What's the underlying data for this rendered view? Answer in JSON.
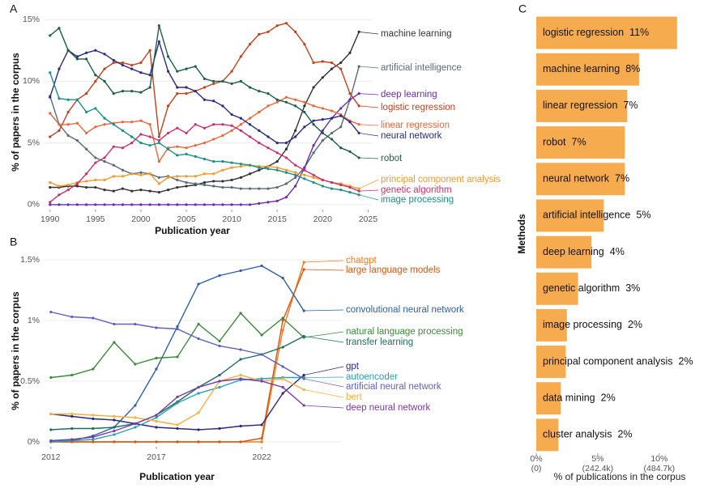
{
  "chart_data": [
    {
      "type": "line",
      "panel": "A",
      "xlabel": "Publication year",
      "ylabel": "% of papers in the corpus",
      "x": [
        1990,
        1991,
        1992,
        1993,
        1994,
        1995,
        1996,
        1997,
        1998,
        1999,
        2000,
        2001,
        2002,
        2003,
        2004,
        2005,
        2006,
        2007,
        2008,
        2009,
        2010,
        2011,
        2012,
        2013,
        2014,
        2015,
        2016,
        2017,
        2018,
        2019,
        2020,
        2021,
        2022,
        2023,
        2024
      ],
      "xlim": [
        1989.4,
        2025.5
      ],
      "xticks": [
        1990,
        1995,
        2000,
        2005,
        2010,
        2015,
        2020,
        2025
      ],
      "ylim": [
        -0.4,
        15.4
      ],
      "yticks": [
        {
          "value": 0,
          "label": "0%"
        },
        {
          "value": 5,
          "label": "5%"
        },
        {
          "value": 10,
          "label": "10%"
        },
        {
          "value": 15,
          "label": "15%"
        }
      ],
      "grid": true,
      "series": [
        {
          "name": "machine learning",
          "color": "#333333",
          "values": [
            1.4,
            1.4,
            1.5,
            1.5,
            1.4,
            1.4,
            1.2,
            1.1,
            1.3,
            1.1,
            1.2,
            1.1,
            1.0,
            1.2,
            1.4,
            1.5,
            1.6,
            1.8,
            1.9,
            1.9,
            2.0,
            2.2,
            2.5,
            2.8,
            3.1,
            3.5,
            4.5,
            6.0,
            8.0,
            9.5,
            10.3,
            11.0,
            11.5,
            12.3,
            14.0
          ]
        },
        {
          "name": "artificial intelligence",
          "color": "#5a6b74",
          "values": [
            8.8,
            6.5,
            5.6,
            5.2,
            4.5,
            3.8,
            3.5,
            3.2,
            2.8,
            2.5,
            2.6,
            2.5,
            2.2,
            2.3,
            2.0,
            1.8,
            1.7,
            1.6,
            1.5,
            1.4,
            1.4,
            1.3,
            1.3,
            1.3,
            1.3,
            1.4,
            1.7,
            2.2,
            3.0,
            4.2,
            5.2,
            5.8,
            6.3,
            8.5,
            11.2
          ]
        },
        {
          "name": "deep learning",
          "color": "#6a2fa8",
          "values": [
            0,
            0,
            0,
            0,
            0,
            0,
            0,
            0,
            0,
            0,
            0,
            0,
            0,
            0,
            0,
            0,
            0,
            0,
            0,
            0,
            0,
            0,
            0,
            0.1,
            0.2,
            0.3,
            0.6,
            1.5,
            3.0,
            4.8,
            6.0,
            7.0,
            7.8,
            8.5,
            9.0
          ]
        },
        {
          "name": "logistic regression",
          "color": "#c0431f",
          "values": [
            5.5,
            6.0,
            7.5,
            8.5,
            9.0,
            10.0,
            11.0,
            11.5,
            11.5,
            11.3,
            11.5,
            12.5,
            5.5,
            8.0,
            9.0,
            9.0,
            9.2,
            9.5,
            9.8,
            10.0,
            10.8,
            12.0,
            13.0,
            13.8,
            14.0,
            14.5,
            14.7,
            14.0,
            13.0,
            11.5,
            11.6,
            11.5,
            11.0,
            9.0,
            8.0
          ]
        },
        {
          "name": "linear regression",
          "color": "#e8683c",
          "values": [
            7.4,
            6.5,
            6.5,
            6.6,
            5.8,
            6.3,
            6.5,
            6.6,
            6.7,
            6.7,
            6.8,
            6.5,
            3.5,
            4.6,
            4.7,
            4.6,
            4.8,
            5.0,
            5.3,
            5.6,
            6.0,
            6.5,
            7.0,
            7.5,
            8.0,
            8.3,
            8.7,
            8.5,
            8.3,
            8.0,
            7.8,
            7.6,
            7.3,
            6.8,
            6.5
          ]
        },
        {
          "name": "neural network",
          "color": "#2c2a86",
          "values": [
            8.7,
            11.0,
            12.5,
            12.0,
            12.3,
            12.5,
            12.2,
            11.7,
            11.3,
            11.0,
            10.7,
            10.5,
            13.2,
            10.8,
            9.5,
            9.5,
            9.2,
            8.5,
            8.4,
            8.0,
            7.3,
            7.0,
            6.5,
            6.0,
            5.5,
            5.0,
            5.0,
            5.5,
            6.3,
            6.8,
            6.9,
            7.0,
            7.2,
            6.7,
            5.8
          ]
        },
        {
          "name": "robot",
          "color": "#1e5e46",
          "values": [
            13.7,
            14.3,
            12.5,
            11.8,
            11.8,
            10.5,
            10.0,
            9.0,
            9.2,
            9.2,
            9.1,
            9.5,
            14.5,
            12.0,
            10.8,
            11.0,
            11.2,
            10.2,
            10.0,
            10.0,
            9.8,
            10.0,
            9.5,
            9.2,
            9.0,
            8.5,
            8.3,
            8.0,
            7.5,
            6.5,
            5.8,
            5.3,
            4.6,
            4.3,
            3.8
          ]
        },
        {
          "name": "principal component analysis",
          "color": "#f39a2a",
          "values": [
            1.8,
            1.5,
            1.6,
            1.8,
            1.9,
            2.0,
            2.0,
            2.3,
            2.3,
            2.5,
            2.4,
            2.5,
            1.7,
            2.2,
            2.3,
            2.3,
            2.3,
            2.5,
            2.5,
            2.8,
            3.0,
            3.1,
            3.2,
            3.1,
            3.1,
            3.0,
            2.8,
            2.6,
            2.4,
            2.2,
            2.0,
            1.8,
            1.7,
            1.5,
            1.3
          ]
        },
        {
          "name": "genetic algorithm",
          "color": "#c8306e",
          "values": [
            0.2,
            0.8,
            1.2,
            1.7,
            2.5,
            3.4,
            3.8,
            4.7,
            4.6,
            5.0,
            5.7,
            5.5,
            5.2,
            5.8,
            6.2,
            5.8,
            6.5,
            6.2,
            6.5,
            6.5,
            6.4,
            6.0,
            5.5,
            5.0,
            4.6,
            4.2,
            3.8,
            3.2,
            2.8,
            2.4,
            2.0,
            1.8,
            1.6,
            1.4,
            1.1
          ]
        },
        {
          "name": "image processing",
          "color": "#1c8f86",
          "values": [
            10.7,
            8.6,
            8.5,
            8.5,
            7.5,
            7.8,
            7.0,
            6.5,
            6.0,
            5.5,
            5.0,
            4.8,
            5.0,
            4.5,
            4.0,
            4.1,
            3.9,
            3.7,
            3.5,
            3.5,
            3.4,
            3.3,
            3.2,
            3.0,
            2.9,
            2.8,
            2.6,
            2.4,
            2.1,
            1.8,
            1.5,
            1.3,
            1.2,
            1.0,
            0.8
          ]
        }
      ]
    },
    {
      "type": "line",
      "panel": "B",
      "xlabel": "Publication year",
      "ylabel": "% of papers in the corpus",
      "x": [
        2012,
        2013,
        2014,
        2015,
        2016,
        2017,
        2018,
        2019,
        2020,
        2021,
        2022,
        2023,
        2024
      ],
      "xlim": [
        2011.7,
        2025.8
      ],
      "xticks": [
        2012,
        2017,
        2022
      ],
      "ylim": [
        -0.04,
        1.54
      ],
      "yticks": [
        {
          "value": 0,
          "label": "0%"
        },
        {
          "value": 0.5,
          "label": "0.5%"
        },
        {
          "value": 1,
          "label": "1%"
        },
        {
          "value": 1.5,
          "label": "1.5%"
        }
      ],
      "grid": true,
      "series": [
        {
          "name": "chatgpt",
          "color": "#f47a20",
          "values": [
            0,
            0,
            0,
            0,
            0,
            0,
            0,
            0,
            0,
            0,
            0,
            0.92,
            1.48
          ]
        },
        {
          "name": "large language models",
          "color": "#d9560e",
          "values": [
            0,
            0,
            0,
            0,
            0,
            0,
            0,
            0,
            0,
            0,
            0.03,
            1.0,
            1.42
          ]
        },
        {
          "name": "convolutional neural network",
          "color": "#2e5fa8",
          "values": [
            0,
            0.01,
            0.05,
            0.12,
            0.3,
            0.6,
            0.95,
            1.3,
            1.37,
            1.41,
            1.45,
            1.35,
            1.08
          ]
        },
        {
          "name": "natural language processing",
          "color": "#3a8a3a",
          "values": [
            0.53,
            0.55,
            0.6,
            0.82,
            0.64,
            0.69,
            0.7,
            0.97,
            0.83,
            1.06,
            0.88,
            1.02,
            0.86
          ]
        },
        {
          "name": "transfer learning",
          "color": "#1f6e5a",
          "values": [
            0.1,
            0.11,
            0.11,
            0.12,
            0.15,
            0.22,
            0.33,
            0.45,
            0.55,
            0.68,
            0.72,
            0.78,
            0.87
          ]
        },
        {
          "name": "gpt",
          "color": "#2a2a7a",
          "values": [
            0.23,
            0.21,
            0.19,
            0.18,
            0.15,
            0.12,
            0.11,
            0.1,
            0.11,
            0.13,
            0.14,
            0.4,
            0.55
          ]
        },
        {
          "name": "autoencoder",
          "color": "#2aa0b0",
          "values": [
            0,
            0.01,
            0.02,
            0.06,
            0.12,
            0.2,
            0.32,
            0.4,
            0.45,
            0.51,
            0.52,
            0.53,
            0.53
          ]
        },
        {
          "name": "artificial neural network",
          "color": "#6060c0",
          "values": [
            1.07,
            1.03,
            1.02,
            0.97,
            0.97,
            0.94,
            0.93,
            0.85,
            0.79,
            0.76,
            0.72,
            0.62,
            0.52
          ]
        },
        {
          "name": "bert",
          "color": "#f5b040",
          "values": [
            0.23,
            0.23,
            0.22,
            0.21,
            0.2,
            0.17,
            0.14,
            0.24,
            0.5,
            0.55,
            0.5,
            0.52,
            0.43
          ]
        },
        {
          "name": "deep neural network",
          "color": "#7a3aa8",
          "values": [
            0.01,
            0.02,
            0.04,
            0.09,
            0.15,
            0.22,
            0.37,
            0.45,
            0.5,
            0.52,
            0.5,
            0.45,
            0.3
          ]
        }
      ]
    },
    {
      "type": "hbar",
      "panel": "C",
      "xlabel": "% of publications in the corpus",
      "ylabel": "Methods",
      "color": "#f7ab4f",
      "categories": [
        "logistic regression",
        "machine learning",
        "linear regression",
        "robot",
        "neural network",
        "artificial intelligence",
        "deep learning",
        "genetic algorithm",
        "image processing",
        "principal component analysis",
        "data mining",
        "cluster analysis"
      ],
      "values": [
        11.45,
        8.36,
        7.4,
        7.2,
        7.2,
        5.49,
        4.49,
        3.4,
        2.49,
        2.4,
        2.0,
        1.8
      ],
      "value_labels": [
        "11%",
        "8%",
        "7%",
        "7%",
        "7%",
        "5%",
        "4%",
        "3%",
        "2%",
        "2%",
        "2%",
        "2%"
      ],
      "xlim": [
        0,
        13.7
      ],
      "xticks": [
        {
          "value": 0,
          "label": "0%",
          "count": "(0)"
        },
        {
          "value": 5,
          "label": "5%",
          "count": "(242.4k)"
        },
        {
          "value": 10,
          "label": "10%",
          "count": "(484.7k)"
        }
      ]
    }
  ]
}
